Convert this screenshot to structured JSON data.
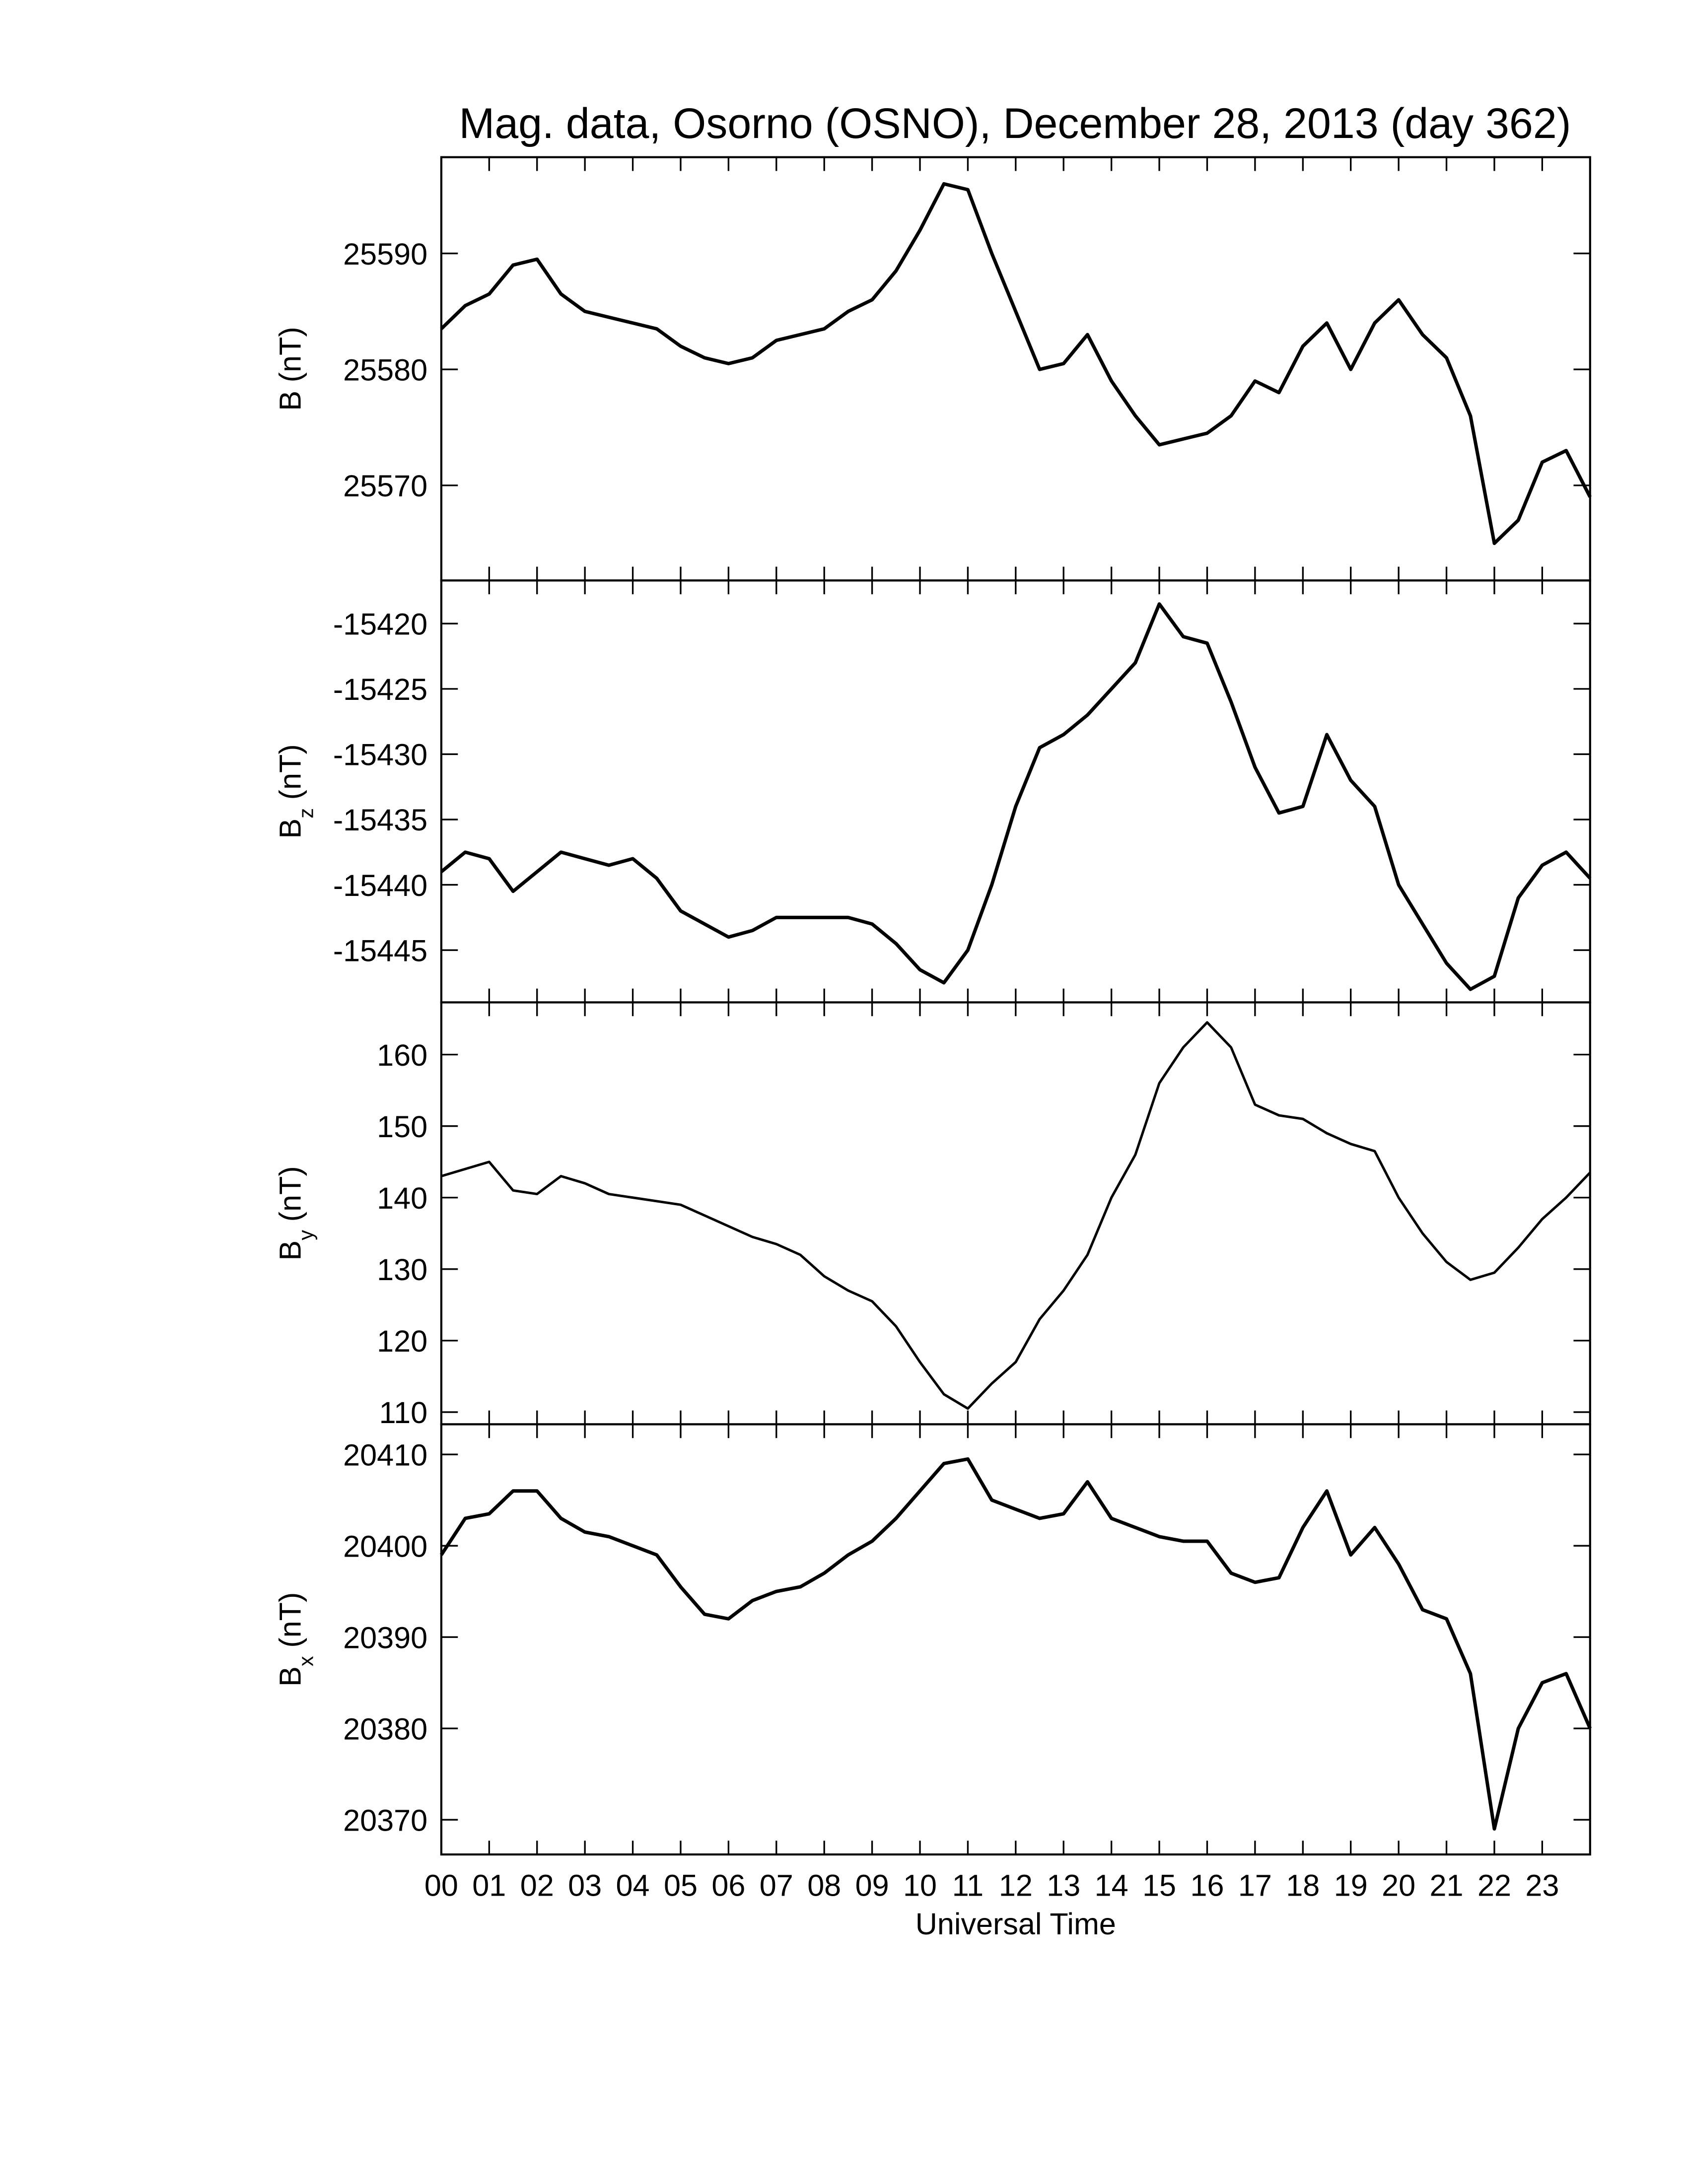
{
  "chart_data": [
    {
      "type": "line",
      "title": "Mag. data, Osorno (OSNO), December 28, 2013 (day 362)",
      "ylabel": "B",
      "ylabel_unit": "(nT)",
      "x": [
        0,
        0.5,
        1,
        1.5,
        2,
        2.5,
        3,
        3.5,
        4,
        4.5,
        5,
        5.5,
        6,
        6.5,
        7,
        7.5,
        8,
        8.5,
        9,
        9.5,
        10,
        10.5,
        11,
        11.5,
        12,
        12.5,
        13,
        13.5,
        14,
        14.5,
        15,
        15.5,
        16,
        16.5,
        17,
        17.5,
        18,
        18.5,
        19,
        19.5,
        20,
        20.5,
        21,
        21.5,
        22,
        22.5,
        23,
        23.5,
        24
      ],
      "series": [
        {
          "color": "#000000",
          "values": [
            25583.5,
            25585.5,
            25586.5,
            25589,
            25589.5,
            25586.5,
            25585,
            25584.5,
            25584,
            25583.5,
            25582,
            25581,
            25580.5,
            25581,
            25582.5,
            25583,
            25583.5,
            25585,
            25586,
            25588.5,
            25592,
            25596,
            25595.5,
            25590,
            25585,
            25580,
            25580.5,
            25583,
            25579,
            25576,
            25573.5,
            25574,
            25574.5,
            25576,
            25579,
            25578,
            25582,
            25584,
            25580,
            25584,
            25586,
            25583,
            25581,
            25576,
            25565,
            25567,
            25572,
            25573,
            25569
          ]
        }
      ],
      "xlim": [
        0,
        24
      ],
      "ylim": [
        25561.8,
        25598.3
      ],
      "yticks": [
        25570,
        25580,
        25590
      ]
    },
    {
      "type": "line",
      "ylabel": "B",
      "ylabel_sub": "z",
      "ylabel_unit": "(nT)",
      "x": [
        0,
        0.5,
        1,
        1.5,
        2,
        2.5,
        3,
        3.5,
        4,
        4.5,
        5,
        5.5,
        6,
        6.5,
        7,
        7.5,
        8,
        8.5,
        9,
        9.5,
        10,
        10.5,
        11,
        11.5,
        12,
        12.5,
        13,
        13.5,
        14,
        14.5,
        15,
        15.5,
        16,
        16.5,
        17,
        17.5,
        18,
        18.5,
        19,
        19.5,
        20,
        20.5,
        21,
        21.5,
        22,
        22.5,
        23,
        23.5,
        24
      ],
      "series": [
        {
          "color": "#000000",
          "values": [
            -15439,
            -15437.5,
            -15438,
            -15440.5,
            -15439,
            -15437.5,
            -15438,
            -15438.5,
            -15438,
            -15439.5,
            -15442,
            -15443,
            -15444,
            -15443.5,
            -15442.5,
            -15442.5,
            -15442.5,
            -15442.5,
            -15443,
            -15444.5,
            -15446.5,
            -15447.5,
            -15445,
            -15440,
            -15434,
            -15429.5,
            -15428.5,
            -15427,
            -15425,
            -15423,
            -15418.5,
            -15421,
            -15421.5,
            -15426,
            -15431,
            -15434.5,
            -15434,
            -15428.5,
            -15432,
            -15434,
            -15440,
            -15443,
            -15446,
            -15448,
            -15447,
            -15441,
            -15438.5,
            -15437.5,
            -15439.5
          ]
        }
      ],
      "xlim": [
        0,
        24
      ],
      "ylim": [
        -15449.0,
        -15416.7
      ],
      "yticks": [
        -15445,
        -15440,
        -15435,
        -15430,
        -15425,
        -15420
      ]
    },
    {
      "type": "line",
      "ylabel": "B",
      "ylabel_sub": "y",
      "ylabel_unit": "(nT)",
      "x": [
        0,
        0.5,
        1,
        1.5,
        2,
        2.5,
        3,
        3.5,
        4,
        4.5,
        5,
        5.5,
        6,
        6.5,
        7,
        7.5,
        8,
        8.5,
        9,
        9.5,
        10,
        10.5,
        11,
        11.5,
        12,
        12.5,
        13,
        13.5,
        14,
        14.5,
        15,
        15.5,
        16,
        16.5,
        17,
        17.5,
        18,
        18.5,
        19,
        19.5,
        20,
        20.5,
        21,
        21.5,
        22,
        22.5,
        23,
        23.5,
        24
      ],
      "series": [
        {
          "color": "#000000",
          "values": [
            143,
            144,
            145,
            141,
            140.5,
            143,
            142,
            140.5,
            140,
            139.5,
            139,
            137.5,
            136,
            134.5,
            133.5,
            132,
            129,
            127,
            125.5,
            122,
            117,
            112.5,
            110.5,
            114,
            117,
            123,
            127,
            132,
            140,
            146,
            156,
            161,
            164.5,
            161,
            153,
            151.5,
            151,
            149,
            147.5,
            146.5,
            140,
            135,
            131,
            128.5,
            129.5,
            133,
            137,
            140,
            143.5
          ]
        }
      ],
      "xlim": [
        0,
        24
      ],
      "ylim": [
        108.3,
        167.3
      ],
      "yticks": [
        110,
        120,
        130,
        140,
        150,
        160
      ]
    },
    {
      "type": "line",
      "ylabel": "B",
      "ylabel_sub": "x",
      "ylabel_unit": "(nT)",
      "xlabel": "Universal Time",
      "x": [
        0,
        0.5,
        1,
        1.5,
        2,
        2.5,
        3,
        3.5,
        4,
        4.5,
        5,
        5.5,
        6,
        6.5,
        7,
        7.5,
        8,
        8.5,
        9,
        9.5,
        10,
        10.5,
        11,
        11.5,
        12,
        12.5,
        13,
        13.5,
        14,
        14.5,
        15,
        15.5,
        16,
        16.5,
        17,
        17.5,
        18,
        18.5,
        19,
        19.5,
        20,
        20.5,
        21,
        21.5,
        22,
        22.5,
        23,
        23.5,
        24
      ],
      "series": [
        {
          "color": "#000000",
          "values": [
            20399,
            20403,
            20403.5,
            20406,
            20406,
            20403,
            20401.5,
            20401,
            20400,
            20399,
            20395.5,
            20392.5,
            20392,
            20394,
            20395,
            20395.5,
            20397,
            20399,
            20400.5,
            20403,
            20406,
            20409,
            20409.5,
            20405,
            20404,
            20403,
            20403.5,
            20407,
            20403,
            20402,
            20401,
            20400.5,
            20400.5,
            20397,
            20396,
            20396.5,
            20402,
            20406,
            20399,
            20402,
            20398,
            20393,
            20392,
            20386,
            20369,
            20380,
            20385,
            20386,
            20380
          ]
        }
      ],
      "xlim": [
        0,
        24
      ],
      "ylim": [
        20366.2,
        20413.3
      ],
      "yticks": [
        20370,
        20380,
        20390,
        20400,
        20410
      ],
      "xticks": [
        {
          "value": 0,
          "label": "00"
        },
        {
          "value": 1,
          "label": "01"
        },
        {
          "value": 2,
          "label": "02"
        },
        {
          "value": 3,
          "label": "03"
        },
        {
          "value": 4,
          "label": "04"
        },
        {
          "value": 5,
          "label": "05"
        },
        {
          "value": 6,
          "label": "06"
        },
        {
          "value": 7,
          "label": "07"
        },
        {
          "value": 8,
          "label": "08"
        },
        {
          "value": 9,
          "label": "09"
        },
        {
          "value": 10,
          "label": "10"
        },
        {
          "value": 11,
          "label": "11"
        },
        {
          "value": 12,
          "label": "12"
        },
        {
          "value": 13,
          "label": "13"
        },
        {
          "value": 14,
          "label": "14"
        },
        {
          "value": 15,
          "label": "15"
        },
        {
          "value": 16,
          "label": "16"
        },
        {
          "value": 17,
          "label": "17"
        },
        {
          "value": 18,
          "label": "18"
        },
        {
          "value": 19,
          "label": "19"
        },
        {
          "value": 20,
          "label": "20"
        },
        {
          "value": 21,
          "label": "21"
        },
        {
          "value": 22,
          "label": "22"
        },
        {
          "value": 23,
          "label": "23"
        }
      ]
    }
  ]
}
